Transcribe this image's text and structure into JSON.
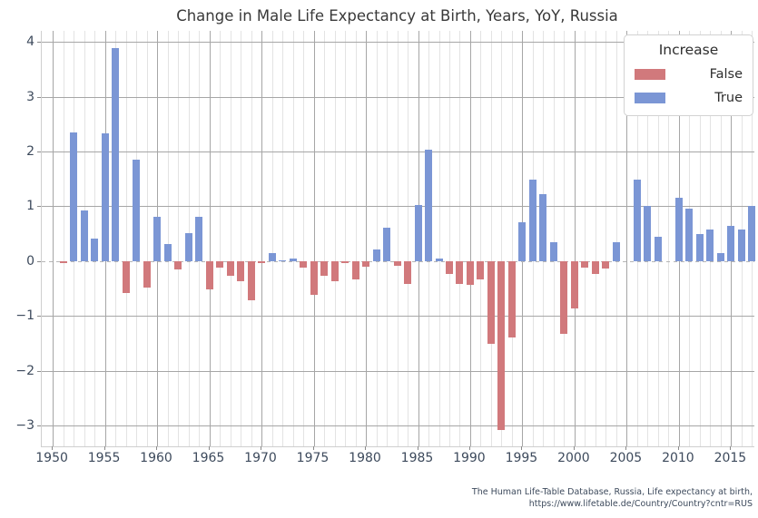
{
  "title": "Change in Male Life Expectancy at Birth, Years, YoY, Russia",
  "footer": {
    "line1": "The Human Life-Table Database, Russia, Life expectancy at birth,",
    "line2": "https://www.lifetable.de/Country/Country?cntr=RUS"
  },
  "chart_data": {
    "type": "bar",
    "title": "Change in Male Life Expectancy at Birth, Years, YoY, Russia",
    "xlabel": "",
    "ylabel": "",
    "xlim": [
      1948.95,
      2017.23
    ],
    "ylim": [
      -3.38,
      4.2
    ],
    "x_ticks": [
      1950,
      1955,
      1960,
      1965,
      1970,
      1975,
      1980,
      1985,
      1990,
      1995,
      2000,
      2005,
      2010,
      2015
    ],
    "y_ticks": [
      4,
      3,
      2,
      1,
      0,
      -1,
      -2,
      -3
    ],
    "y_tick_labels": [
      "4",
      "3",
      "2",
      "1",
      "0",
      "−1",
      "−2",
      "−3"
    ],
    "minor_grid_years": {
      "start": 1950,
      "end": 2017
    },
    "grid": "horizontal major on, vertical major every 5 years, vertical minor every year",
    "zero_line": "dashed",
    "legend": {
      "title": "Increase",
      "position": "upper right",
      "entries": [
        {
          "label": "False",
          "color": "#d1797c"
        },
        {
          "label": "True",
          "color": "#7b96d5"
        }
      ]
    },
    "points": [
      {
        "year": 1951,
        "value": -0.03,
        "increase": false
      },
      {
        "year": 1952,
        "value": 2.34,
        "increase": true
      },
      {
        "year": 1953,
        "value": 0.93,
        "increase": true
      },
      {
        "year": 1954,
        "value": 0.41,
        "increase": true
      },
      {
        "year": 1955,
        "value": 2.33,
        "increase": true
      },
      {
        "year": 1956,
        "value": 3.88,
        "increase": true
      },
      {
        "year": 1957,
        "value": -0.59,
        "increase": false
      },
      {
        "year": 1958,
        "value": 1.85,
        "increase": true
      },
      {
        "year": 1959,
        "value": -0.48,
        "increase": false
      },
      {
        "year": 1960,
        "value": 0.81,
        "increase": true
      },
      {
        "year": 1961,
        "value": 0.31,
        "increase": true
      },
      {
        "year": 1962,
        "value": -0.15,
        "increase": false
      },
      {
        "year": 1963,
        "value": 0.51,
        "increase": true
      },
      {
        "year": 1964,
        "value": 0.81,
        "increase": true
      },
      {
        "year": 1965,
        "value": -0.51,
        "increase": false
      },
      {
        "year": 1966,
        "value": -0.12,
        "increase": false
      },
      {
        "year": 1967,
        "value": -0.27,
        "increase": false
      },
      {
        "year": 1968,
        "value": -0.37,
        "increase": false
      },
      {
        "year": 1969,
        "value": -0.71,
        "increase": false
      },
      {
        "year": 1970,
        "value": -0.03,
        "increase": false
      },
      {
        "year": 1971,
        "value": 0.15,
        "increase": true
      },
      {
        "year": 1972,
        "value": 0.02,
        "increase": true
      },
      {
        "year": 1973,
        "value": 0.05,
        "increase": true
      },
      {
        "year": 1974,
        "value": -0.12,
        "increase": false
      },
      {
        "year": 1975,
        "value": -0.62,
        "increase": false
      },
      {
        "year": 1976,
        "value": -0.27,
        "increase": false
      },
      {
        "year": 1977,
        "value": -0.37,
        "increase": false
      },
      {
        "year": 1978,
        "value": -0.03,
        "increase": false
      },
      {
        "year": 1979,
        "value": -0.33,
        "increase": false
      },
      {
        "year": 1980,
        "value": -0.1,
        "increase": false
      },
      {
        "year": 1981,
        "value": 0.22,
        "increase": true
      },
      {
        "year": 1982,
        "value": 0.61,
        "increase": true
      },
      {
        "year": 1983,
        "value": -0.09,
        "increase": false
      },
      {
        "year": 1984,
        "value": -0.42,
        "increase": false
      },
      {
        "year": 1985,
        "value": 1.03,
        "increase": true
      },
      {
        "year": 1986,
        "value": 2.03,
        "increase": true
      },
      {
        "year": 1987,
        "value": 0.04,
        "increase": true
      },
      {
        "year": 1988,
        "value": -0.23,
        "increase": false
      },
      {
        "year": 1989,
        "value": -0.42,
        "increase": false
      },
      {
        "year": 1990,
        "value": -0.43,
        "increase": false
      },
      {
        "year": 1991,
        "value": -0.33,
        "increase": false
      },
      {
        "year": 1992,
        "value": -1.51,
        "increase": false
      },
      {
        "year": 1993,
        "value": -3.08,
        "increase": false
      },
      {
        "year": 1994,
        "value": -1.39,
        "increase": false
      },
      {
        "year": 1995,
        "value": 0.71,
        "increase": true
      },
      {
        "year": 1996,
        "value": 1.49,
        "increase": true
      },
      {
        "year": 1997,
        "value": 1.22,
        "increase": true
      },
      {
        "year": 1998,
        "value": 0.34,
        "increase": true
      },
      {
        "year": 1999,
        "value": -1.32,
        "increase": false
      },
      {
        "year": 2000,
        "value": -0.87,
        "increase": false
      },
      {
        "year": 2001,
        "value": -0.12,
        "increase": false
      },
      {
        "year": 2002,
        "value": -0.24,
        "increase": false
      },
      {
        "year": 2003,
        "value": -0.13,
        "increase": false
      },
      {
        "year": 2004,
        "value": 0.34,
        "increase": true
      },
      {
        "year": 2005,
        "value": 0.0,
        "increase": true
      },
      {
        "year": 2006,
        "value": 1.49,
        "increase": true
      },
      {
        "year": 2007,
        "value": 1.0,
        "increase": true
      },
      {
        "year": 2008,
        "value": 0.45,
        "increase": true
      },
      {
        "year": 2009,
        "value": 0.0,
        "increase": true
      },
      {
        "year": 2010,
        "value": 1.16,
        "increase": true
      },
      {
        "year": 2011,
        "value": 0.95,
        "increase": true
      },
      {
        "year": 2012,
        "value": 0.49,
        "increase": true
      },
      {
        "year": 2013,
        "value": 0.57,
        "increase": true
      },
      {
        "year": 2014,
        "value": 0.14,
        "increase": true
      },
      {
        "year": 2015,
        "value": 0.64,
        "increase": true
      },
      {
        "year": 2016,
        "value": 0.57,
        "increase": true
      },
      {
        "year": 2017,
        "value": 1.01,
        "increase": true
      }
    ]
  }
}
